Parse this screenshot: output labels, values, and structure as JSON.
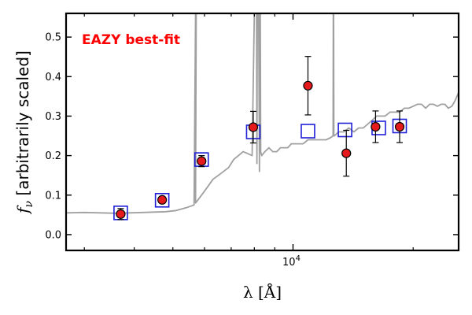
{
  "chart_data": {
    "type": "scatter",
    "title": "",
    "xlabel": "λ [Å]",
    "ylabel": "f_ν [arbitrarily scaled]",
    "x_scale": "log",
    "xlim": [
      2700,
      26000
    ],
    "ylim": [
      -0.04,
      0.56
    ],
    "yticks": [
      0.0,
      0.1,
      0.2,
      0.3,
      0.4,
      0.5
    ],
    "ytick_labels": [
      "0.0",
      "0.1",
      "0.2",
      "0.3",
      "0.4",
      "0.5"
    ],
    "xticks_labeled": [
      10000
    ],
    "xtick_labels": [
      "10^4"
    ],
    "grid": false,
    "annotation": {
      "text": "EAZY best-fit",
      "color": "#ff0000"
    },
    "colors": {
      "observed_marker": "#e41a1c",
      "model_box": "#1f1fd6",
      "sed_line": "#a0a0a0"
    },
    "series": [
      {
        "kind": "sed_line",
        "x": [
          2700,
          3000,
          3300,
          3600,
          3900,
          4200,
          4500,
          4800,
          5100,
          5400,
          5650,
          5700,
          5720,
          5700,
          5900,
          6100,
          6300,
          6500,
          6700,
          6900,
          7100,
          7300,
          7500,
          7700,
          7900,
          8000,
          8100,
          8120,
          8140,
          8200,
          8240,
          8260,
          8280,
          8300,
          8350,
          8500,
          8700,
          8900,
          9100,
          9300,
          9500,
          9700,
          9900,
          10100,
          10300,
          10600,
          10900,
          11200,
          11500,
          11800,
          12100,
          12400,
          12600,
          12620,
          12640,
          12660,
          12700,
          13000,
          13400,
          13800,
          14200,
          14600,
          15000,
          15400,
          15800,
          16200,
          16600,
          17000,
          17500,
          18000,
          18500,
          19000,
          19500,
          20000,
          20500,
          21000,
          21500,
          22000,
          22500,
          23000,
          23500,
          24000,
          24500,
          25000,
          25500,
          26000
        ],
        "y": [
          0.055,
          0.056,
          0.055,
          0.054,
          0.055,
          0.056,
          0.057,
          0.058,
          0.061,
          0.068,
          0.075,
          0.56,
          0.56,
          0.08,
          0.1,
          0.12,
          0.14,
          0.15,
          0.16,
          0.17,
          0.19,
          0.2,
          0.21,
          0.205,
          0.2,
          0.56,
          0.56,
          0.18,
          0.56,
          0.56,
          0.16,
          0.56,
          0.56,
          0.21,
          0.2,
          0.21,
          0.22,
          0.21,
          0.21,
          0.22,
          0.22,
          0.22,
          0.23,
          0.23,
          0.23,
          0.23,
          0.24,
          0.24,
          0.24,
          0.24,
          0.24,
          0.245,
          0.25,
          0.56,
          0.56,
          0.25,
          0.25,
          0.26,
          0.26,
          0.27,
          0.26,
          0.27,
          0.27,
          0.28,
          0.29,
          0.3,
          0.3,
          0.3,
          0.31,
          0.31,
          0.31,
          0.32,
          0.32,
          0.325,
          0.33,
          0.33,
          0.32,
          0.33,
          0.33,
          0.325,
          0.33,
          0.33,
          0.32,
          0.325,
          0.34,
          0.36
        ]
      },
      {
        "kind": "model_boxes",
        "x": [
          3700,
          4700,
          5900,
          7950,
          10900,
          13500,
          16400,
          18500
        ],
        "y": [
          0.055,
          0.087,
          0.19,
          0.26,
          0.262,
          0.265,
          0.27,
          0.275
        ]
      },
      {
        "kind": "observed",
        "x": [
          3700,
          4700,
          5900,
          7950,
          10900,
          13600,
          16100,
          18500
        ],
        "y": [
          0.052,
          0.088,
          0.186,
          0.272,
          0.377,
          0.206,
          0.273,
          0.273
        ],
        "yerr": [
          0.014,
          0.008,
          0.014,
          0.04,
          0.074,
          0.058,
          0.04,
          0.04
        ]
      }
    ]
  }
}
